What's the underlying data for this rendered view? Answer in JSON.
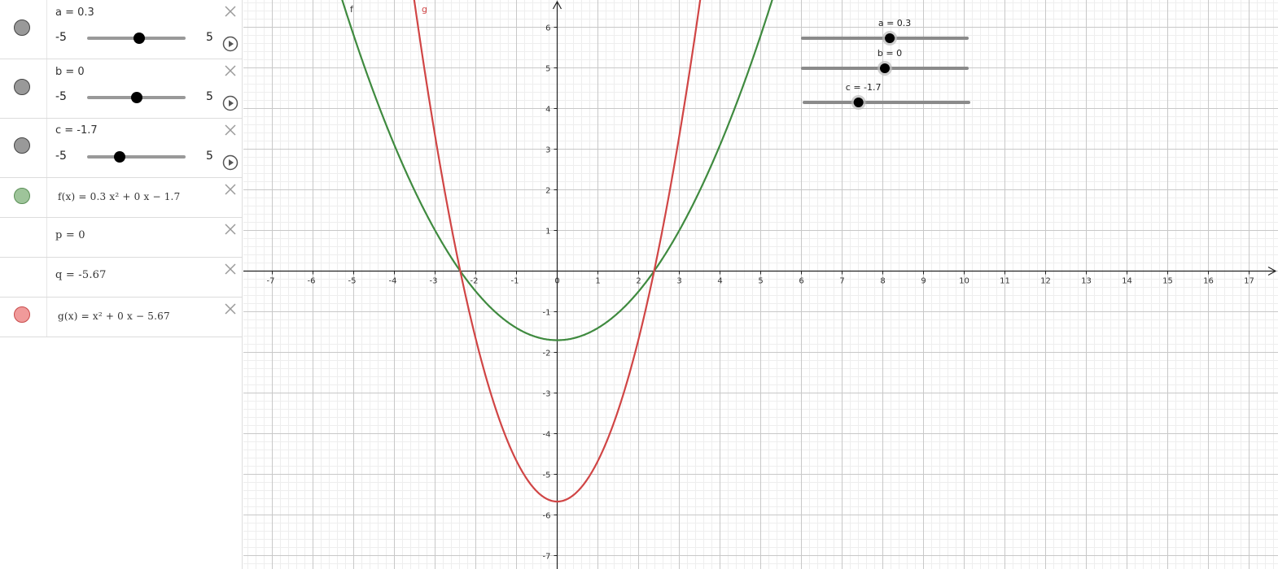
{
  "algebra": {
    "sliders": [
      {
        "name": "a",
        "label": "a = 0.3",
        "value": 0.3,
        "min": -5,
        "max": 5,
        "min_label": "-5",
        "max_label": "5",
        "color": "#999999"
      },
      {
        "name": "b",
        "label": "b = 0",
        "value": 0,
        "min": -5,
        "max": 5,
        "min_label": "-5",
        "max_label": "5",
        "color": "#999999"
      },
      {
        "name": "c",
        "label": "c = -1.7",
        "value": -1.7,
        "min": -5,
        "max": 5,
        "min_label": "-5",
        "max_label": "5",
        "color": "#999999"
      }
    ],
    "f_def": "f(x) = 0.3 x² + 0 x − 1.7",
    "p_def": "p = 0",
    "q_def": "q = -5.67",
    "g_def": "g(x) = x² + 0 x − 5.67",
    "f_color": "#9ec49a",
    "g_color": "#f09a9a"
  },
  "graphics": {
    "x_ticks": [
      "-7",
      "-6",
      "-5",
      "-4",
      "-3",
      "-2",
      "-1",
      "0",
      "1",
      "2",
      "3",
      "4",
      "5",
      "6",
      "7",
      "8",
      "9",
      "10",
      "11",
      "12",
      "13",
      "14",
      "15",
      "16",
      "17"
    ],
    "y_ticks_pos": [
      "1",
      "2",
      "3",
      "4",
      "5",
      "6"
    ],
    "y_ticks_neg": [
      "-1",
      "-2",
      "-3",
      "-4",
      "-5",
      "-6",
      "-7"
    ],
    "f_label": "f",
    "g_label": "g",
    "f_stroke": "#3f8a3f",
    "g_stroke": "#d04545",
    "grid_minor": "#eeeeee",
    "grid_major": "#c8c8c8",
    "sliders": [
      {
        "label": "a = 0.3",
        "value": 0.3,
        "min": -5,
        "max": 5
      },
      {
        "label": "b = 0",
        "value": 0,
        "min": -5,
        "max": 5
      },
      {
        "label": "c = -1.7",
        "value": -1.7,
        "min": -5,
        "max": 5
      }
    ]
  },
  "chart_data": {
    "type": "line",
    "xlim": [
      -7.5,
      17.6
    ],
    "ylim": [
      -7.2,
      6.6
    ],
    "grid": true,
    "series": [
      {
        "name": "f",
        "function": "0.3x^2 + 0x - 1.7",
        "a": 0.3,
        "b": 0,
        "c": -1.7,
        "color": "#3f8a3f"
      },
      {
        "name": "g",
        "function": "x^2 + 0x - 5.67",
        "a": 1,
        "b": 0,
        "c": -5.67,
        "color": "#d04545"
      }
    ]
  }
}
